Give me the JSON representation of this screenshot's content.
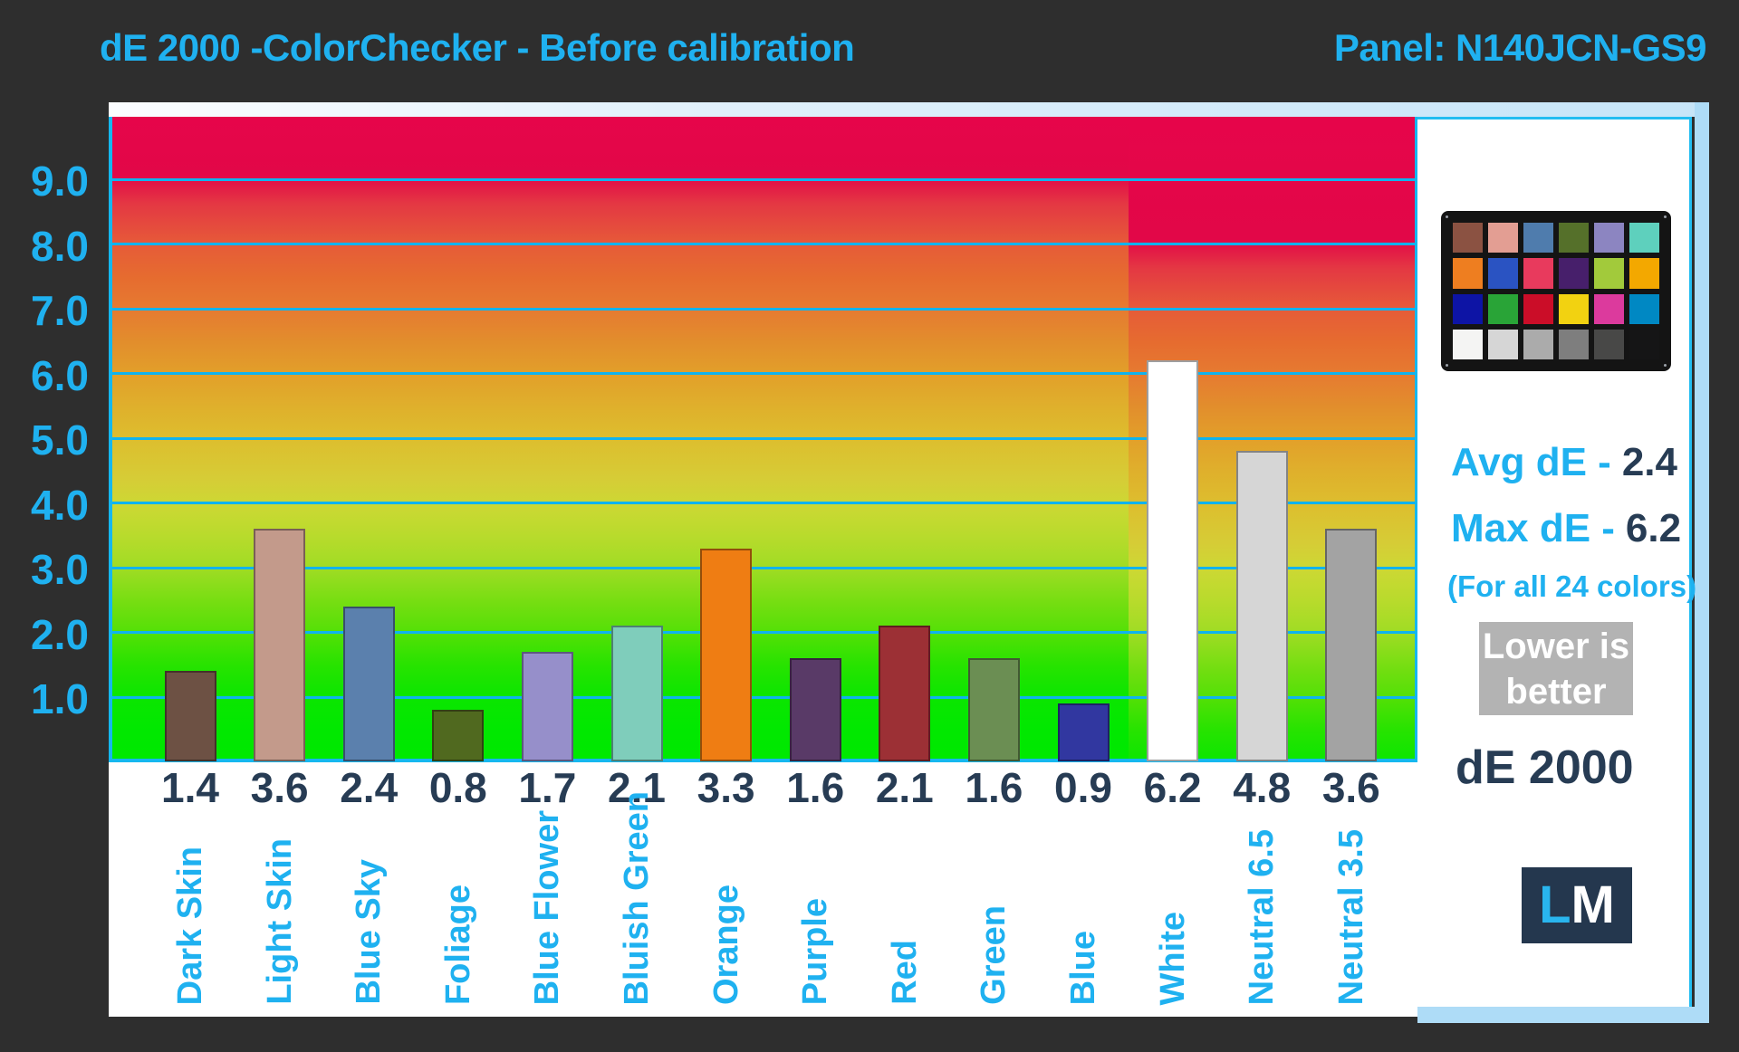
{
  "header": {
    "title": "dE 2000 -ColorChecker - Before calibration",
    "panel_label": "Panel: N140JCN-GS9"
  },
  "colors": {
    "background": "#2e2e2e",
    "accent_cyan": "#1fb1f0",
    "navy_text": "#273c54",
    "gridline_cyan": "#10b3ee",
    "frame_pale_blue": "#aedcf7",
    "lower_box_gray": "#b3b3b3",
    "logo_navy": "#24374e"
  },
  "chart_data": {
    "type": "bar",
    "title": "dE 2000 -ColorChecker - Before calibration",
    "panel": "N140JCN-GS9",
    "categories": [
      "Dark Skin",
      "Light Skin",
      "Blue Sky",
      "Foliage",
      "Blue Flower",
      "Bluish Green",
      "Orange",
      "Purple",
      "Red",
      "Green",
      "Blue",
      "White",
      "Neutral 6.5",
      "Neutral 3.5"
    ],
    "values": [
      1.4,
      3.6,
      2.4,
      0.8,
      1.7,
      2.1,
      3.3,
      1.6,
      2.1,
      1.6,
      0.9,
      6.2,
      4.8,
      3.6
    ],
    "value_labels": [
      "1.4",
      "3.6",
      "2.4",
      "0.8",
      "1.7",
      "2.1",
      "3.3",
      "1.6",
      "2.1",
      "1.6",
      "0.9",
      "6.2",
      "4.8",
      "3.6"
    ],
    "bar_colors": [
      "#6d5144",
      "#c39a8b",
      "#5b80ad",
      "#50691f",
      "#968fca",
      "#7fcdbb",
      "#ef7d13",
      "#593a67",
      "#9c3035",
      "#6b8e53",
      "#3137a0",
      "#ffffff",
      "#d6d6d6",
      "#a3a3a3"
    ],
    "xlabel": "",
    "ylabel": "dE 2000",
    "ylim": [
      0,
      10
    ],
    "yticks": [
      "9.0",
      "8.0",
      "7.0",
      "6.0",
      "5.0",
      "4.0",
      "3.0",
      "2.0",
      "1.0"
    ],
    "grid": true,
    "background_style": "green-to-red rainbow gradient, right segment behind White/Neutral bars shifted one unit down",
    "legend_position": "none"
  },
  "sidebar": {
    "avg_label": "Avg dE -",
    "avg_value": "2.4",
    "max_label": "Max dE -",
    "max_value": "6.2",
    "note": "(For all 24 colors)",
    "badge_lines": [
      "Lower is",
      "better"
    ],
    "footer_label": "dE 2000",
    "logo": {
      "l": "L",
      "m": "M"
    },
    "colorchecker": {
      "rows": 4,
      "cols": 6,
      "patches": [
        "#8b5242",
        "#e39e93",
        "#4f7cad",
        "#55702a",
        "#8c85c1",
        "#5ed0bd",
        "#ee7e20",
        "#2a53c2",
        "#e83a5d",
        "#471f6b",
        "#a2ca3b",
        "#f3a800",
        "#0d14a5",
        "#29a437",
        "#cb0d28",
        "#f2d211",
        "#dc3a9d",
        "#0088c3",
        "#f4f4f3",
        "#d6d6d6",
        "#ababab",
        "#7e7e7e",
        "#484847",
        "#151516"
      ]
    }
  }
}
